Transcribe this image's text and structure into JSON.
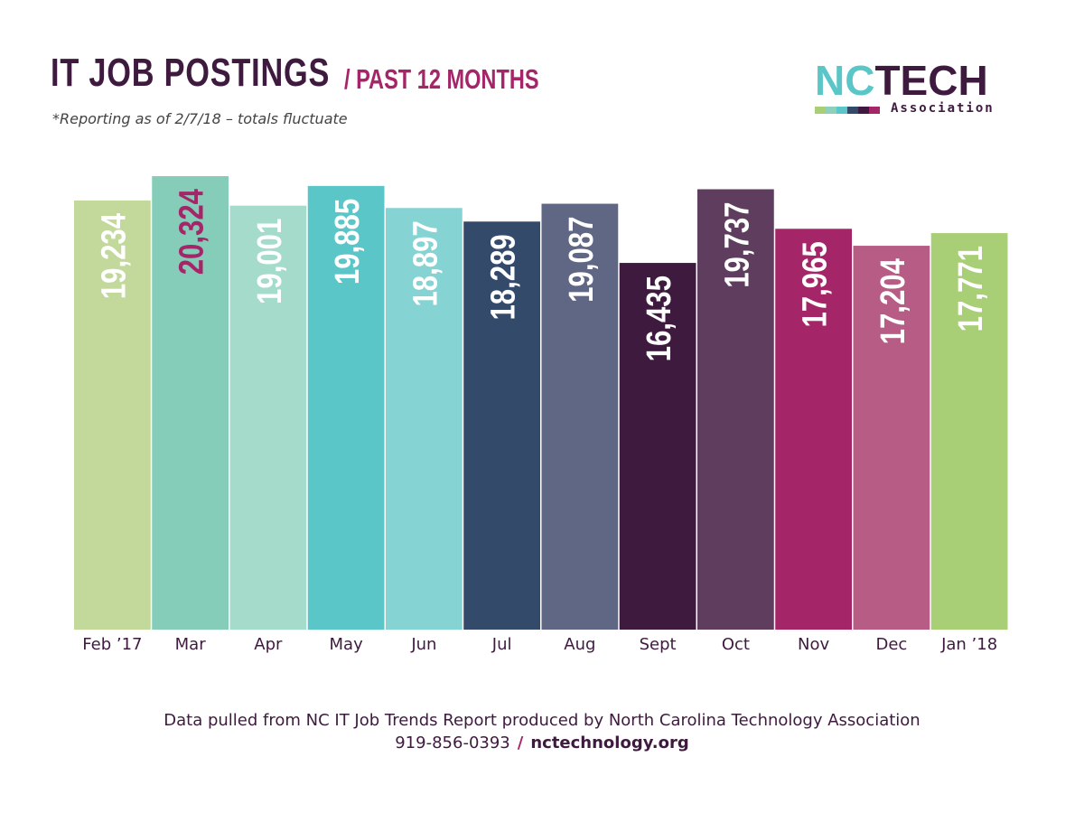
{
  "header": {
    "title": "IT JOB POSTINGS",
    "subtitle": "/ PAST 12 MONTHS",
    "note": "*Reporting as of 2/7/18 – totals fluctuate"
  },
  "logo": {
    "nc": "NC",
    "tech": "TECH",
    "association": "Association",
    "stripe_colors": [
      "#a8cf76",
      "#8fd0bd",
      "#5bc6c8",
      "#344a6b",
      "#3f1a3f",
      "#a52668"
    ]
  },
  "footer": {
    "source": "Data pulled from NC IT Job Trends Report produced by North Carolina Technology Association",
    "phone": "919-856-0393",
    "separator": "/",
    "website": "nctechnology.org"
  },
  "chart_data": {
    "type": "bar",
    "title": "IT JOB POSTINGS",
    "subtitle": "/ PAST 12 MONTHS",
    "categories": [
      "Feb ’17",
      "Mar",
      "Apr",
      "May",
      "Jun",
      "Jul",
      "Aug",
      "Sept",
      "Oct",
      "Nov",
      "Dec",
      "Jan ’18"
    ],
    "values": [
      19234,
      20324,
      19001,
      19885,
      18897,
      18289,
      19087,
      16435,
      19737,
      17965,
      17204,
      17771
    ],
    "value_labels": [
      "19,234",
      "20,324",
      "19,001",
      "19,885",
      "18,897",
      "18,289",
      "19,087",
      "16,435",
      "19,737",
      "17,965",
      "17,204",
      "17,771"
    ],
    "bar_colors": [
      "#c2d99b",
      "#86cdb9",
      "#a5dbcb",
      "#5bc6c8",
      "#86d3d3",
      "#344a6b",
      "#5f6784",
      "#3f1a3f",
      "#5e3d5e",
      "#a52668",
      "#b75c85",
      "#a8cf76"
    ],
    "label_colors": [
      "#ffffff",
      "#a52668",
      "#ffffff",
      "#ffffff",
      "#ffffff",
      "#ffffff",
      "#ffffff",
      "#ffffff",
      "#ffffff",
      "#ffffff",
      "#ffffff",
      "#ffffff"
    ],
    "xlabel": "",
    "ylabel": "",
    "ylim": [
      0,
      20324
    ],
    "grid": false,
    "legend": "none"
  }
}
